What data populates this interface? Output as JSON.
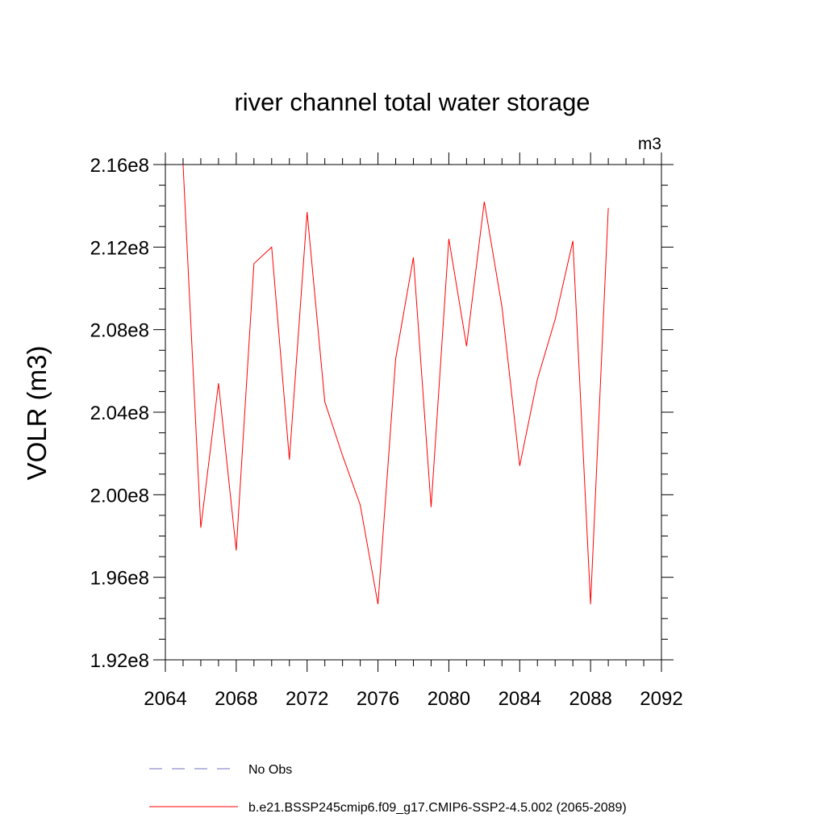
{
  "chart_data": {
    "type": "line",
    "title": "river channel total water storage",
    "units_label": "m3",
    "ylabel": "VOLR  (m3)",
    "xlabel": "",
    "xlim": [
      2064,
      2092
    ],
    "ylim": [
      192000000,
      216000000
    ],
    "x_ticks": [
      2064,
      2068,
      2072,
      2076,
      2080,
      2084,
      2088,
      2092
    ],
    "x_tick_labels": [
      "2064",
      "2068",
      "2072",
      "2076",
      "2080",
      "2084",
      "2088",
      "2092"
    ],
    "y_ticks": [
      192000000,
      196000000,
      200000000,
      204000000,
      208000000,
      212000000,
      216000000
    ],
    "y_tick_labels": [
      "1.92e8",
      "1.96e8",
      "2.00e8",
      "2.04e8",
      "2.08e8",
      "2.12e8",
      "2.16e8"
    ],
    "grid": false,
    "legend_position": "bottom",
    "series": [
      {
        "name": "No Obs",
        "color": "#7070c0",
        "style": "dashed",
        "x": [],
        "y": []
      },
      {
        "name": "b.e21.BSSP245cmip6.f09_g17.CMIP6-SSP2-4.5.002 (2065-2089)",
        "color": "#ff0000",
        "style": "solid",
        "x": [
          2065,
          2066,
          2067,
          2068,
          2069,
          2070,
          2071,
          2072,
          2073,
          2074,
          2075,
          2076,
          2077,
          2078,
          2079,
          2080,
          2081,
          2082,
          2083,
          2084,
          2085,
          2086,
          2087,
          2088,
          2089
        ],
        "y": [
          216000000,
          198400000,
          205400000,
          197300000,
          211200000,
          212000000,
          201700000,
          213700000,
          204500000,
          201900000,
          199500000,
          194700000,
          206600000,
          211500000,
          199400000,
          212400000,
          207200000,
          214200000,
          209100000,
          201400000,
          205600000,
          208500000,
          212300000,
          194700000,
          213900000
        ]
      }
    ]
  }
}
